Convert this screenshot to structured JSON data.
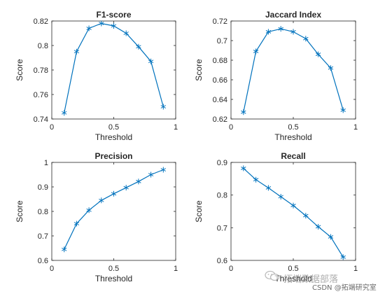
{
  "colors": {
    "line": "#0072BD",
    "axis": "#262626",
    "text": "#262626"
  },
  "watermark": {
    "text": "拓端数据部落",
    "sub": "CSDN @拓端研究室",
    "icon": "wechat-icon"
  },
  "chart_data": [
    {
      "type": "line",
      "title": "F1-score",
      "xlabel": "Threshold",
      "ylabel": "Score",
      "xlim": [
        0,
        1
      ],
      "ylim": [
        0.74,
        0.82
      ],
      "xticks": [
        0,
        0.5,
        1
      ],
      "xtick_labels": [
        "0",
        "0.5",
        "1"
      ],
      "yticks": [
        0.74,
        0.76,
        0.78,
        0.8,
        0.82
      ],
      "ytick_labels": [
        "0.74",
        "0.76",
        "0.78",
        "0.8",
        "0.82"
      ],
      "marker": "*",
      "grid": false,
      "x": [
        0.1,
        0.2,
        0.3,
        0.4,
        0.5,
        0.6,
        0.7,
        0.8,
        0.9
      ],
      "y": [
        0.745,
        0.795,
        0.814,
        0.818,
        0.816,
        0.81,
        0.799,
        0.787,
        0.75
      ]
    },
    {
      "type": "line",
      "title": "Jaccard Index",
      "xlabel": "Threshold",
      "ylabel": "Score",
      "xlim": [
        0,
        1
      ],
      "ylim": [
        0.62,
        0.72
      ],
      "xticks": [
        0,
        0.5,
        1
      ],
      "xtick_labels": [
        "0",
        "0.5",
        "1"
      ],
      "yticks": [
        0.62,
        0.64,
        0.66,
        0.68,
        0.7,
        0.72
      ],
      "ytick_labels": [
        "0.62",
        "0.64",
        "0.66",
        "0.68",
        "0.7",
        "0.72"
      ],
      "marker": "*",
      "grid": false,
      "x": [
        0.1,
        0.2,
        0.3,
        0.4,
        0.5,
        0.6,
        0.7,
        0.8,
        0.9
      ],
      "y": [
        0.627,
        0.689,
        0.709,
        0.712,
        0.709,
        0.702,
        0.686,
        0.672,
        0.629
      ]
    },
    {
      "type": "line",
      "title": "Precision",
      "xlabel": "Threshold",
      "ylabel": "Score",
      "xlim": [
        0,
        1
      ],
      "ylim": [
        0.6,
        1
      ],
      "xticks": [
        0,
        0.5,
        1
      ],
      "xtick_labels": [
        "0",
        "0.5",
        "1"
      ],
      "yticks": [
        0.6,
        0.7,
        0.8,
        0.9,
        1
      ],
      "ytick_labels": [
        "0.6",
        "0.7",
        "0.8",
        "0.9",
        "1"
      ],
      "marker": "*",
      "grid": false,
      "x": [
        0.1,
        0.2,
        0.3,
        0.4,
        0.5,
        0.6,
        0.7,
        0.8,
        0.9
      ],
      "y": [
        0.645,
        0.75,
        0.805,
        0.845,
        0.872,
        0.897,
        0.922,
        0.95,
        0.97
      ]
    },
    {
      "type": "line",
      "title": "Recall",
      "xlabel": "Threshold",
      "ylabel": "Score",
      "xlim": [
        0,
        1
      ],
      "ylim": [
        0.6,
        0.9
      ],
      "xticks": [
        0,
        0.5,
        1
      ],
      "xtick_labels": [
        "0",
        "0.5",
        "1"
      ],
      "yticks": [
        0.6,
        0.7,
        0.8,
        0.9
      ],
      "ytick_labels": [
        "0.6",
        "0.7",
        "0.8",
        "0.9"
      ],
      "marker": "*",
      "grid": false,
      "x": [
        0.1,
        0.2,
        0.3,
        0.4,
        0.5,
        0.6,
        0.7,
        0.8,
        0.9
      ],
      "y": [
        0.882,
        0.847,
        0.822,
        0.795,
        0.768,
        0.737,
        0.703,
        0.672,
        0.61
      ]
    }
  ]
}
